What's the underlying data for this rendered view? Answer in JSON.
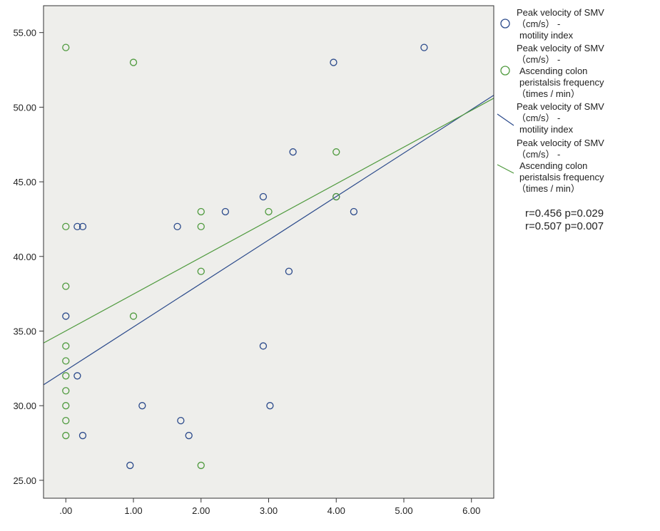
{
  "chart_data": {
    "type": "scatter",
    "title": "",
    "xlabel": "",
    "ylabel": "",
    "xlim": [
      -0.33,
      6.33
    ],
    "ylim": [
      23.8,
      56.8
    ],
    "x_ticks": [
      {
        "value": 0,
        "label": ".00"
      },
      {
        "value": 1,
        "label": "1.00"
      },
      {
        "value": 2,
        "label": "2.00"
      },
      {
        "value": 3,
        "label": "3.00"
      },
      {
        "value": 4,
        "label": "4.00"
      },
      {
        "value": 5,
        "label": "5.00"
      },
      {
        "value": 6,
        "label": "6.00"
      }
    ],
    "y_ticks": [
      {
        "value": 25,
        "label": "25.00"
      },
      {
        "value": 30,
        "label": "30.00"
      },
      {
        "value": 35,
        "label": "35.00"
      },
      {
        "value": 40,
        "label": "40.00"
      },
      {
        "value": 45,
        "label": "45.00"
      },
      {
        "value": 50,
        "label": "50.00"
      },
      {
        "value": 55,
        "label": "55.00"
      }
    ],
    "grid": false,
    "legend_position": "right",
    "background": "#eeeeeb",
    "series": [
      {
        "legend_lines": [
          "Peak velocity of SMV",
          "（cm/s） -",
          "motility index"
        ],
        "color": "#2b4a8b",
        "marker": "circle",
        "points": [
          [
            0.17,
            42
          ],
          [
            0.25,
            42
          ],
          [
            0.17,
            32
          ],
          [
            0.25,
            28
          ],
          [
            0.95,
            26
          ],
          [
            1.13,
            30
          ],
          [
            1.65,
            42
          ],
          [
            1.7,
            29
          ],
          [
            1.82,
            28
          ],
          [
            2.36,
            43
          ],
          [
            2.92,
            44
          ],
          [
            2.92,
            34
          ],
          [
            3.02,
            30
          ],
          [
            3.3,
            39
          ],
          [
            3.36,
            47
          ],
          [
            3.96,
            53
          ],
          [
            4.0,
            44
          ],
          [
            4.26,
            43
          ],
          [
            5.3,
            54
          ],
          [
            0.0,
            36
          ]
        ]
      },
      {
        "legend_lines": [
          "Peak velocity of SMV",
          "（cm/s） -",
          "Ascending colon",
          "peristalsis frequency",
          "（times / min）"
        ],
        "color": "#4f9a3e",
        "marker": "circle",
        "points": [
          [
            0,
            54
          ],
          [
            0,
            42
          ],
          [
            0,
            38
          ],
          [
            0,
            34
          ],
          [
            0,
            33
          ],
          [
            0,
            32
          ],
          [
            0,
            31
          ],
          [
            0,
            30
          ],
          [
            0,
            29
          ],
          [
            0,
            28
          ],
          [
            1,
            53
          ],
          [
            1,
            36
          ],
          [
            2,
            43
          ],
          [
            2,
            42
          ],
          [
            2,
            39
          ],
          [
            2,
            26
          ],
          [
            3,
            43
          ],
          [
            4,
            47
          ],
          [
            4,
            44
          ]
        ]
      }
    ],
    "fit_lines": [
      {
        "legend_lines": [
          "Peak velocity of SMV",
          "（cm/s） -",
          "motility index"
        ],
        "color": "#2b4a8b",
        "from": [
          -0.33,
          31.4
        ],
        "to": [
          6.33,
          50.8
        ]
      },
      {
        "legend_lines": [
          "Peak velocity of SMV",
          "（cm/s） -",
          "Ascending colon",
          "peristalsis frequency",
          "（times / min）"
        ],
        "color": "#4f9a3e",
        "from": [
          -0.33,
          34.2
        ],
        "to": [
          6.33,
          50.6
        ]
      }
    ],
    "annotations": [
      "r=0.456  p=0.029",
      "r=0.507  p=0.007"
    ]
  }
}
